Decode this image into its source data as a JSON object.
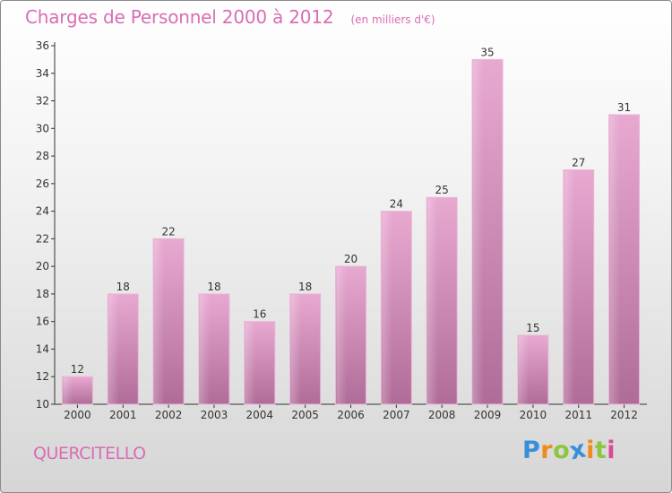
{
  "chart_data": {
    "type": "bar",
    "title": "Charges de Personnel 2000 à 2012",
    "subtitle": "(en milliers d'€)",
    "categories": [
      "2000",
      "2001",
      "2002",
      "2003",
      "2004",
      "2005",
      "2006",
      "2007",
      "2008",
      "2009",
      "2010",
      "2011",
      "2012"
    ],
    "values": [
      12,
      18,
      22,
      18,
      16,
      18,
      20,
      24,
      25,
      35,
      15,
      27,
      31
    ],
    "ylim": [
      10,
      36
    ],
    "yticks": [
      10,
      12,
      14,
      16,
      18,
      20,
      22,
      24,
      26,
      28,
      30,
      32,
      34,
      36
    ],
    "grid": false,
    "bar_color": "#d98fbd"
  },
  "footer": {
    "commune": "QUERCITELLO",
    "logo": {
      "text": "Proxiti",
      "letters": [
        "P",
        "r",
        "o",
        "x",
        "i",
        "t",
        "i"
      ],
      "colors": [
        "#3a8fd9",
        "#f08a1c",
        "#8cc63f",
        "#3a8fd9",
        "#f08a1c",
        "#8cc63f",
        "#d94a9a"
      ]
    }
  },
  "colors": {
    "accent": "#d96db4",
    "axis": "#333333"
  }
}
